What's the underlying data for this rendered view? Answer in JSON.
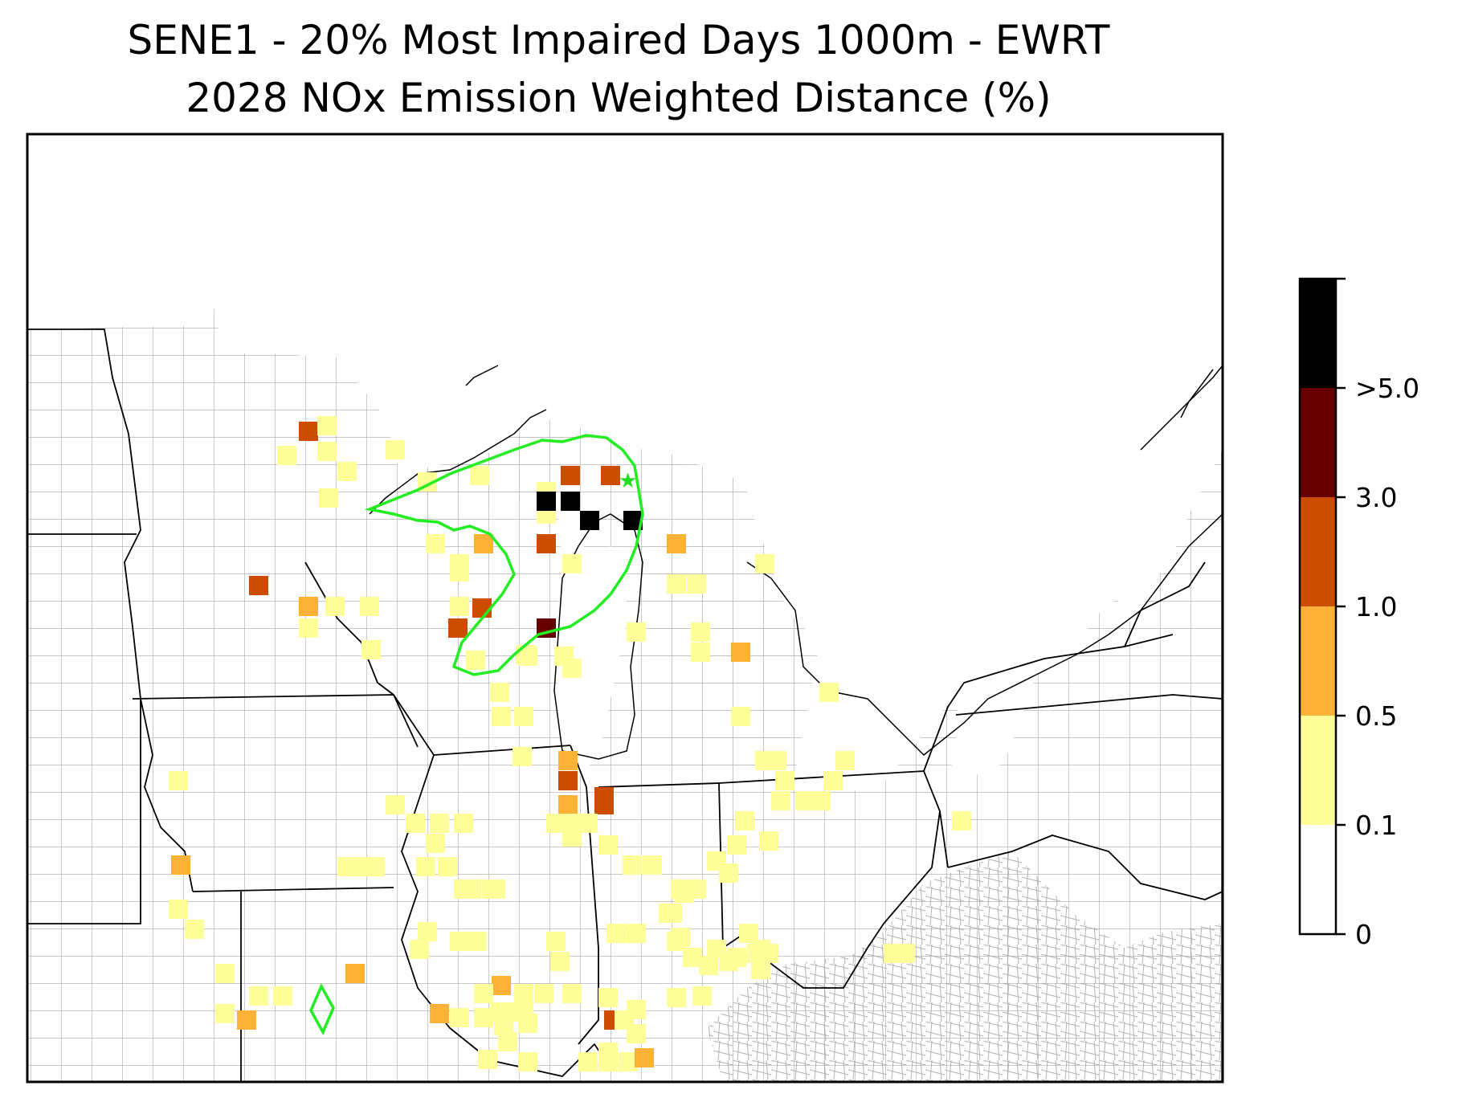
{
  "title": {
    "line1": "SENE1 - 20% Most Impaired Days 1000m - EWRT",
    "line2": "2028 NOx Emission Weighted Distance (%)"
  },
  "map": {
    "region": "Upper Midwest / Great Lakes, USA",
    "county_line_color": "#a0a0a0",
    "state_line_color": "#000000",
    "contour_color": "#00ff00",
    "site_marker": "star-icon"
  },
  "colorbar": {
    "bins": [
      {
        "label": "0",
        "color": "#ffffff"
      },
      {
        "label": "0.1",
        "color": "#ffff99"
      },
      {
        "label": "0.5",
        "color": "#fdb237"
      },
      {
        "label": "1.0",
        "color": "#cc4c02"
      },
      {
        "label": "3.0",
        "color": "#660000"
      },
      {
        "label": ">5.0",
        "color": "#000000"
      }
    ]
  }
}
